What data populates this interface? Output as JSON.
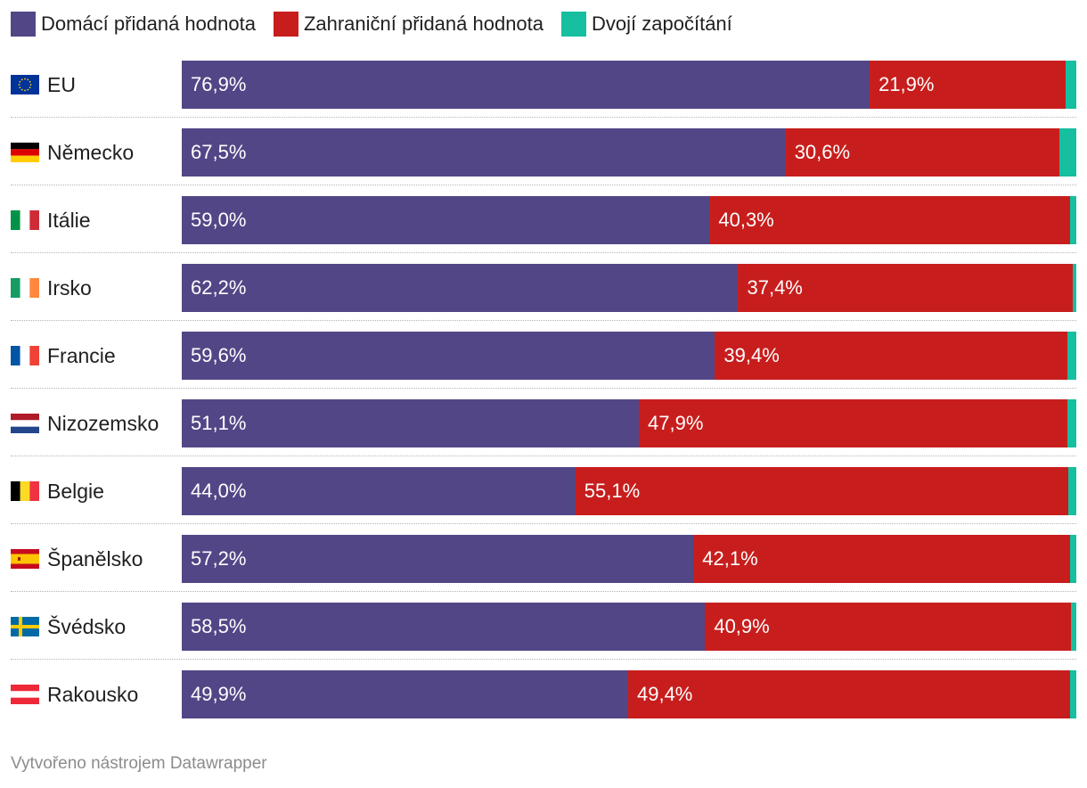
{
  "colors": {
    "domestic": "#534686",
    "foreign": "#c71e1d",
    "double": "#15bfa0"
  },
  "legend": [
    {
      "label": "Domácí přidaná hodnota",
      "color": "#534686"
    },
    {
      "label": "Zahraniční přidaná hodnota",
      "color": "#c71e1d"
    },
    {
      "label": "Dvojí započítání",
      "color": "#15bfa0"
    }
  ],
  "footer": "Vytvořeno nástrojem Datawrapper",
  "chart_data": {
    "type": "bar",
    "orientation": "horizontal",
    "stacked": true,
    "categories": [
      "EU",
      "Německo",
      "Itálie",
      "Irsko",
      "Francie",
      "Nizozemsko",
      "Belgie",
      "Španělsko",
      "Švédsko",
      "Rakousko"
    ],
    "flags": [
      "eu-flag-icon",
      "germany-flag-icon",
      "italy-flag-icon",
      "ireland-flag-icon",
      "france-flag-icon",
      "netherlands-flag-icon",
      "belgium-flag-icon",
      "spain-flag-icon",
      "sweden-flag-icon",
      "austria-flag-icon"
    ],
    "series": [
      {
        "name": "Domácí přidaná hodnota",
        "values": [
          76.9,
          67.5,
          59.0,
          62.2,
          59.6,
          51.1,
          44.0,
          57.2,
          58.5,
          49.9
        ],
        "labels": [
          "76,9%",
          "67,5%",
          "59,0%",
          "62,2%",
          "59,6%",
          "51,1%",
          "44,0%",
          "57,2%",
          "58,5%",
          "49,9%"
        ]
      },
      {
        "name": "Zahraniční přidaná hodnota",
        "values": [
          21.9,
          30.6,
          40.3,
          37.4,
          39.4,
          47.9,
          55.1,
          42.1,
          40.9,
          49.4
        ],
        "labels": [
          "21,9%",
          "30,6%",
          "40,3%",
          "37,4%",
          "39,4%",
          "47,9%",
          "55,1%",
          "42,1%",
          "40,9%",
          "49,4%"
        ]
      },
      {
        "name": "Dvojí započítání",
        "values": [
          1.2,
          1.9,
          0.7,
          0.4,
          1.0,
          1.0,
          0.9,
          0.7,
          0.6,
          0.7
        ]
      }
    ],
    "xlim": [
      0,
      100
    ],
    "grid": false,
    "legend_position": "top-left"
  }
}
